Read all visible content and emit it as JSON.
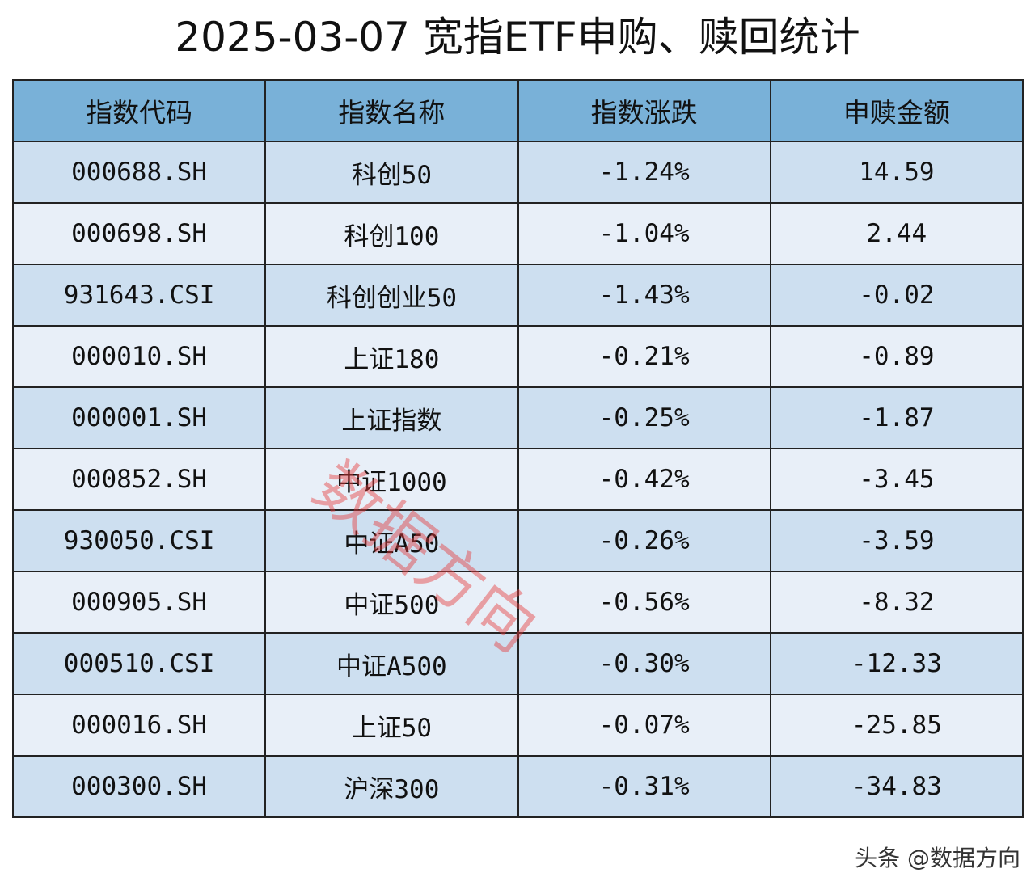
{
  "header": {
    "title": "2025-03-07 宽指ETF申购、赎回统计"
  },
  "table": {
    "columns": [
      "指数代码",
      "指数名称",
      "指数涨跌",
      "申赎金额"
    ],
    "rows": [
      [
        "000688.SH",
        "科创50",
        "-1.24%",
        "14.59"
      ],
      [
        "000698.SH",
        "科创100",
        "-1.04%",
        "2.44"
      ],
      [
        "931643.CSI",
        "科创创业50",
        "-1.43%",
        "-0.02"
      ],
      [
        "000010.SH",
        "上证180",
        "-0.21%",
        "-0.89"
      ],
      [
        "000001.SH",
        "上证指数",
        "-0.25%",
        "-1.87"
      ],
      [
        "000852.SH",
        "中证1000",
        "-0.42%",
        "-3.45"
      ],
      [
        "930050.CSI",
        "中证A50",
        "-0.26%",
        "-3.59"
      ],
      [
        "000905.SH",
        "中证500",
        "-0.56%",
        "-8.32"
      ],
      [
        "000510.CSI",
        "中证A500",
        "-0.30%",
        "-12.33"
      ],
      [
        "000016.SH",
        "上证50",
        "-0.07%",
        "-25.85"
      ],
      [
        "000300.SH",
        "沪深300",
        "-0.31%",
        "-34.83"
      ]
    ]
  },
  "watermark": "数据方向",
  "footer": "头条 @数据方向"
}
